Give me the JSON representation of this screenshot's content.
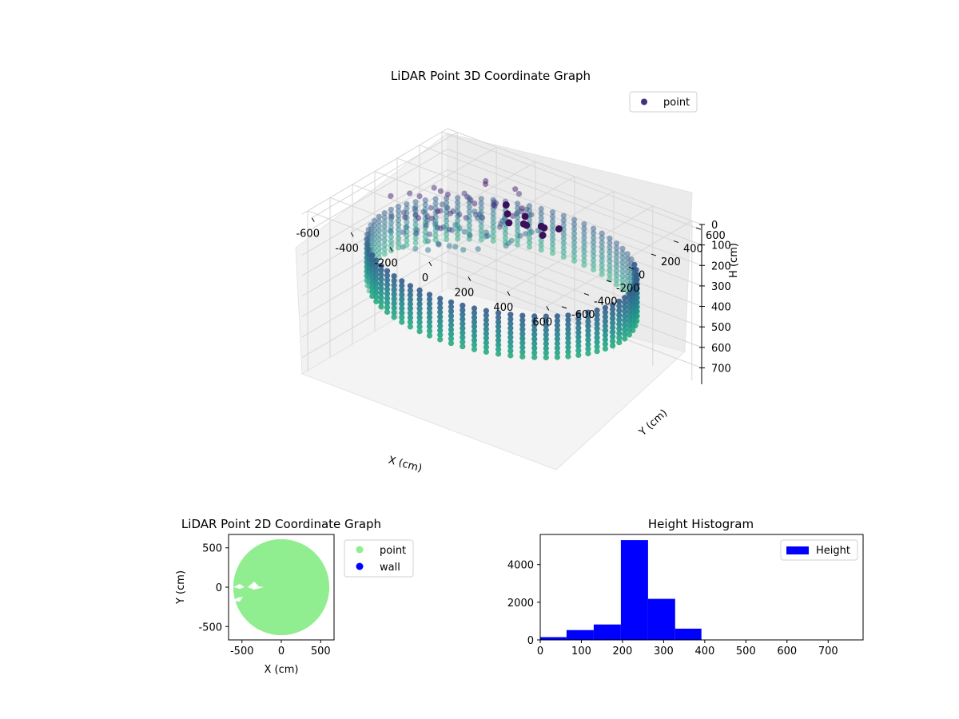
{
  "chart_data": [
    {
      "type": "scatter3d",
      "title": "LiDAR Point 3D Coordinate Graph",
      "xlabel": "X (cm)",
      "ylabel": "Y (cm)",
      "zlabel": "H (cm)",
      "xlim": [
        -650,
        650
      ],
      "ylim": [
        -650,
        650
      ],
      "zlim": [
        0,
        780
      ],
      "z_inverted": true,
      "x_ticks": [
        -600,
        -400,
        -200,
        0,
        200,
        400,
        600
      ],
      "y_ticks": [
        -600,
        -400,
        -200,
        0,
        200,
        400,
        600
      ],
      "z_ticks": [
        0,
        100,
        200,
        300,
        400,
        500,
        600,
        700
      ],
      "legend": {
        "placement": "top-right",
        "entries": [
          {
            "name": "point",
            "color": "#45307f"
          }
        ]
      },
      "grid": true,
      "ring": {
        "radius": 600,
        "h_top": 185,
        "h_bottom": 385,
        "colormap": "viridis"
      }
    },
    {
      "type": "scatter",
      "title": "LiDAR Point 2D Coordinate Graph",
      "xlabel": "X (cm)",
      "ylabel": "Y (cm)",
      "xlim": [
        -670,
        670
      ],
      "ylim": [
        -670,
        670
      ],
      "x_ticks": [
        -500,
        0,
        500
      ],
      "y_ticks": [
        -500,
        0,
        500
      ],
      "series": [
        {
          "name": "point",
          "color": "#90ee90",
          "shape": "disk",
          "radius": 610
        },
        {
          "name": "wall",
          "color": "#0000ff"
        }
      ],
      "legend": {
        "placement": "outside-right"
      }
    },
    {
      "type": "bar",
      "title": "Height Histogram",
      "xlabel": "",
      "ylabel": "",
      "xlim": [
        0,
        785
      ],
      "ylim": [
        0,
        5600
      ],
      "x_ticks": [
        0,
        100,
        200,
        300,
        400,
        500,
        600,
        700
      ],
      "y_ticks": [
        0,
        2000,
        4000
      ],
      "bins": [
        {
          "x0": 0,
          "x1": 64,
          "count": 150
        },
        {
          "x0": 64,
          "x1": 130,
          "count": 520
        },
        {
          "x0": 130,
          "x1": 196,
          "count": 820
        },
        {
          "x0": 196,
          "x1": 262,
          "count": 5300
        },
        {
          "x0": 262,
          "x1": 328,
          "count": 2180
        },
        {
          "x0": 328,
          "x1": 392,
          "count": 600
        }
      ],
      "series": [
        {
          "name": "Height",
          "color": "#0000ff"
        }
      ],
      "legend": {
        "placement": "top-right"
      }
    }
  ]
}
